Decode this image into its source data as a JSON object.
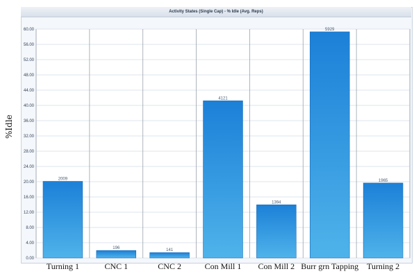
{
  "chart_data": {
    "type": "bar",
    "title": "Activity States (Single Cap) - % Idle (Avg. Reps)",
    "ylabel": "%Idle",
    "xlabel": "",
    "ylim": [
      0,
      60
    ],
    "yticks": [
      "0.00",
      "4.00",
      "8.00",
      "12.00",
      "16.00",
      "20.00",
      "24.00",
      "28.00",
      "32.00",
      "36.00",
      "40.00",
      "44.00",
      "48.00",
      "52.00",
      "56.00",
      "60.00"
    ],
    "categories": [
      "Turning 1",
      "CNC 1",
      "CNC 2",
      "Con Mill 1",
      "Con Mill 2",
      "Burr grn Tapping",
      "Turning 2"
    ],
    "values": [
      20.09,
      1.96,
      1.41,
      41.21,
      13.94,
      59.29,
      19.65
    ],
    "data_labels": [
      "2009",
      "196",
      "141",
      "4121",
      "1394",
      "5929",
      "1965"
    ],
    "grid": true,
    "bar_color": "#2a8fdc"
  }
}
